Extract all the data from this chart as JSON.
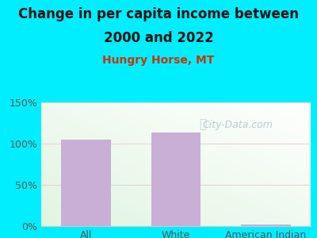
{
  "title_line1": "Change in per capita income between",
  "title_line2": "2000 and 2022",
  "subtitle": "Hungry Horse, MT",
  "categories": [
    "All",
    "White",
    "American Indian"
  ],
  "values": [
    105,
    113,
    2
  ],
  "bar_color": "#c9aed6",
  "title_fontsize": 12,
  "subtitle_fontsize": 10,
  "subtitle_color": "#cc3300",
  "background_color": "#00eeff",
  "ylim": [
    0,
    150
  ],
  "yticks": [
    0,
    50,
    100,
    150
  ],
  "ytick_labels": [
    "0%",
    "50%",
    "100%",
    "150%"
  ],
  "watermark": "City-Data.com",
  "grid_color": "#e8c8c8",
  "tick_color": "#555555",
  "spine_color": "#cccccc"
}
